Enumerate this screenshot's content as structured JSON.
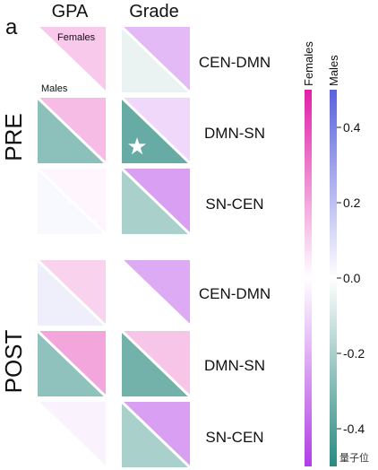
{
  "chart_data": {
    "type": "heatmap",
    "panel_label": "a",
    "column_labels": [
      "GPA",
      "Grade"
    ],
    "row_labels": [
      "CEN-DMN",
      "DMN-SN",
      "SN-CEN",
      "CEN-DMN",
      "DMN-SN",
      "SN-CEN"
    ],
    "group_labels": [
      "PRE",
      "POST"
    ],
    "triangle_labels": {
      "upper": "Females",
      "lower": "Males"
    },
    "colorbars": [
      {
        "name": "Females",
        "colors": [
          "#e020a8",
          "#ffffff",
          "#b23ee6"
        ]
      },
      {
        "name": "Males",
        "colors": [
          "#5a62dc",
          "#ffffff",
          "#2a8a80"
        ]
      }
    ],
    "colorbar_range": [
      -0.5,
      0.5
    ],
    "colorbar_ticks": [
      0.4,
      0.2,
      0.0,
      -0.2,
      -0.4
    ],
    "colorbar_tick_labels": [
      "0.4",
      "0.2",
      "0.0",
      "-0.2",
      "-0.4"
    ],
    "significance_marker": "★",
    "cells": [
      {
        "group": "PRE",
        "row": "CEN-DMN",
        "col": "GPA",
        "females": 0.12,
        "males": 0.0,
        "star": false
      },
      {
        "group": "PRE",
        "row": "CEN-DMN",
        "col": "Grade",
        "females": -0.18,
        "males": -0.05,
        "star": false
      },
      {
        "group": "PRE",
        "row": "DMN-SN",
        "col": "GPA",
        "females": 0.15,
        "males": -0.27,
        "star": false
      },
      {
        "group": "PRE",
        "row": "DMN-SN",
        "col": "Grade",
        "females": -0.1,
        "males": -0.36,
        "star": true
      },
      {
        "group": "PRE",
        "row": "SN-CEN",
        "col": "GPA",
        "females": 0.02,
        "males": 0.02,
        "star": false
      },
      {
        "group": "PRE",
        "row": "SN-CEN",
        "col": "Grade",
        "females": -0.25,
        "males": -0.2,
        "star": false
      },
      {
        "group": "POST",
        "row": "CEN-DMN",
        "col": "GPA",
        "females": 0.1,
        "males": 0.05,
        "star": false
      },
      {
        "group": "POST",
        "row": "CEN-DMN",
        "col": "Grade",
        "females": -0.22,
        "males": 0.0,
        "star": false
      },
      {
        "group": "POST",
        "row": "DMN-SN",
        "col": "GPA",
        "females": 0.2,
        "males": -0.26,
        "star": false
      },
      {
        "group": "POST",
        "row": "DMN-SN",
        "col": "Grade",
        "females": 0.13,
        "males": -0.33,
        "star": false
      },
      {
        "group": "POST",
        "row": "SN-CEN",
        "col": "GPA",
        "females": -0.03,
        "males": 0.0,
        "star": false
      },
      {
        "group": "POST",
        "row": "SN-CEN",
        "col": "Grade",
        "females": -0.25,
        "males": -0.2,
        "star": false
      }
    ]
  },
  "watermark": "量子位"
}
